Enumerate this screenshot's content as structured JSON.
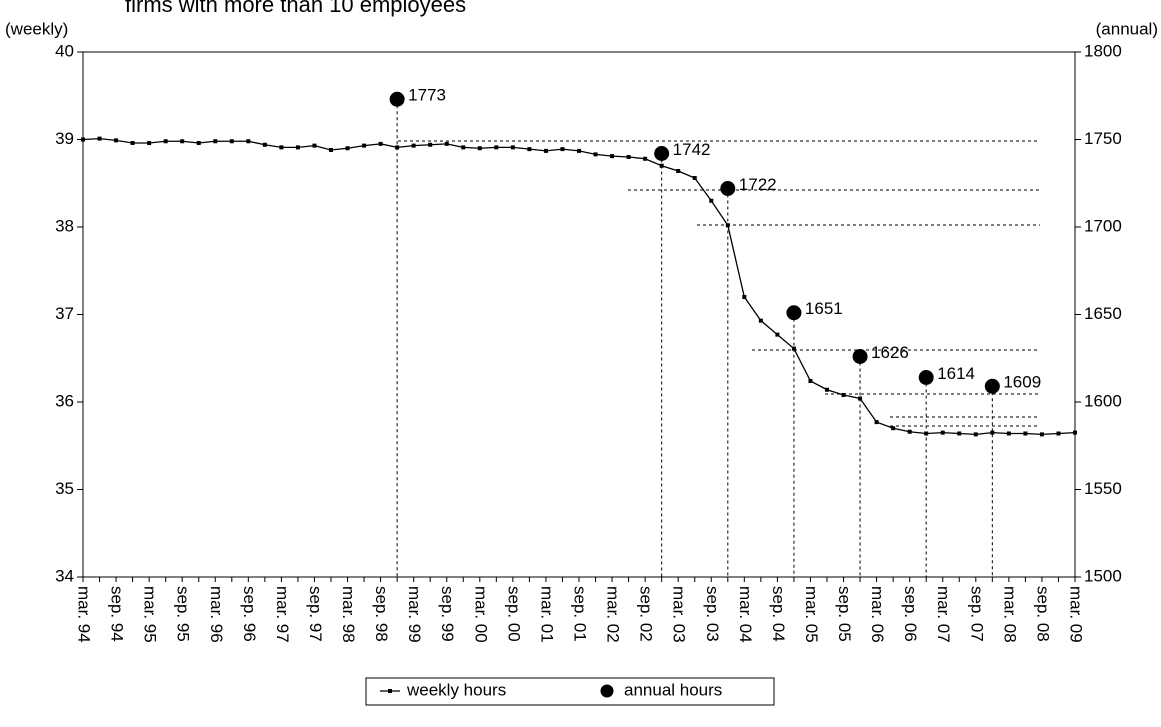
{
  "chart_data": {
    "type": "line",
    "title": "firms with more than 10 employees",
    "y_label": "(weekly)",
    "y2_label": "(annual)",
    "categories": [
      "mar. 94",
      null,
      "sep. 94",
      null,
      "mar. 95",
      null,
      "sep. 95",
      null,
      "mar. 96",
      null,
      "sep. 96",
      null,
      "mar. 97",
      null,
      "sep. 97",
      null,
      "mar. 98",
      null,
      "sep. 98",
      null,
      "mar. 99",
      null,
      "sep. 99",
      null,
      "mar. 00",
      null,
      "sep. 00",
      null,
      "mar. 01",
      null,
      "sep. 01",
      null,
      "mar. 02",
      null,
      "sep. 02",
      null,
      "mar. 03",
      null,
      "sep. 03",
      null,
      "mar. 04",
      null,
      "sep. 04",
      null,
      "mar. 05",
      null,
      "sep. 05",
      null,
      "mar. 06",
      null,
      "sep. 06",
      null,
      "mar. 07",
      null,
      "sep. 07",
      null,
      "mar. 08",
      null,
      "sep. 08",
      null,
      "mar. 09"
    ],
    "series": [
      {
        "name": "weekly hours",
        "color": "#000000",
        "values": [
          39.0,
          39.01,
          38.99,
          38.96,
          38.96,
          38.98,
          38.98,
          38.96,
          38.98,
          38.98,
          38.98,
          38.94,
          38.91,
          38.91,
          38.93,
          38.88,
          38.9,
          38.93,
          38.95,
          38.91,
          38.93,
          38.94,
          38.95,
          38.91,
          38.9,
          38.91,
          38.91,
          38.89,
          38.87,
          38.89,
          38.87,
          38.83,
          38.81,
          38.8,
          38.78,
          38.7,
          38.64,
          38.56,
          38.3,
          38.02,
          37.2,
          36.93,
          36.77,
          36.61,
          36.24,
          36.14,
          36.08,
          36.04,
          35.77,
          35.7,
          35.66,
          35.64,
          35.65,
          35.64,
          35.63,
          35.65,
          35.64,
          35.64,
          35.63,
          35.64,
          35.65
        ]
      },
      {
        "name": "annual hours",
        "color": "#000000",
        "axis": "y2",
        "values": [
          null,
          null,
          null,
          null,
          null,
          null,
          null,
          null,
          null,
          null,
          null,
          null,
          null,
          null,
          null,
          null,
          null,
          null,
          null,
          1773,
          null,
          null,
          null,
          null,
          null,
          null,
          null,
          null,
          null,
          null,
          null,
          null,
          null,
          null,
          null,
          1742,
          null,
          null,
          null,
          1722,
          null,
          null,
          null,
          1651,
          null,
          null,
          null,
          1626,
          null,
          null,
          null,
          1614,
          null,
          null,
          null,
          1609,
          null,
          null,
          null,
          null,
          null
        ]
      }
    ],
    "ylim": [
      34,
      40
    ],
    "yticks": [
      34,
      35,
      36,
      37,
      38,
      39,
      40
    ],
    "y2lim": [
      1500,
      1800
    ],
    "y2ticks": [
      1500,
      1550,
      1600,
      1650,
      1700,
      1750,
      1800
    ],
    "legend": "bottom"
  }
}
